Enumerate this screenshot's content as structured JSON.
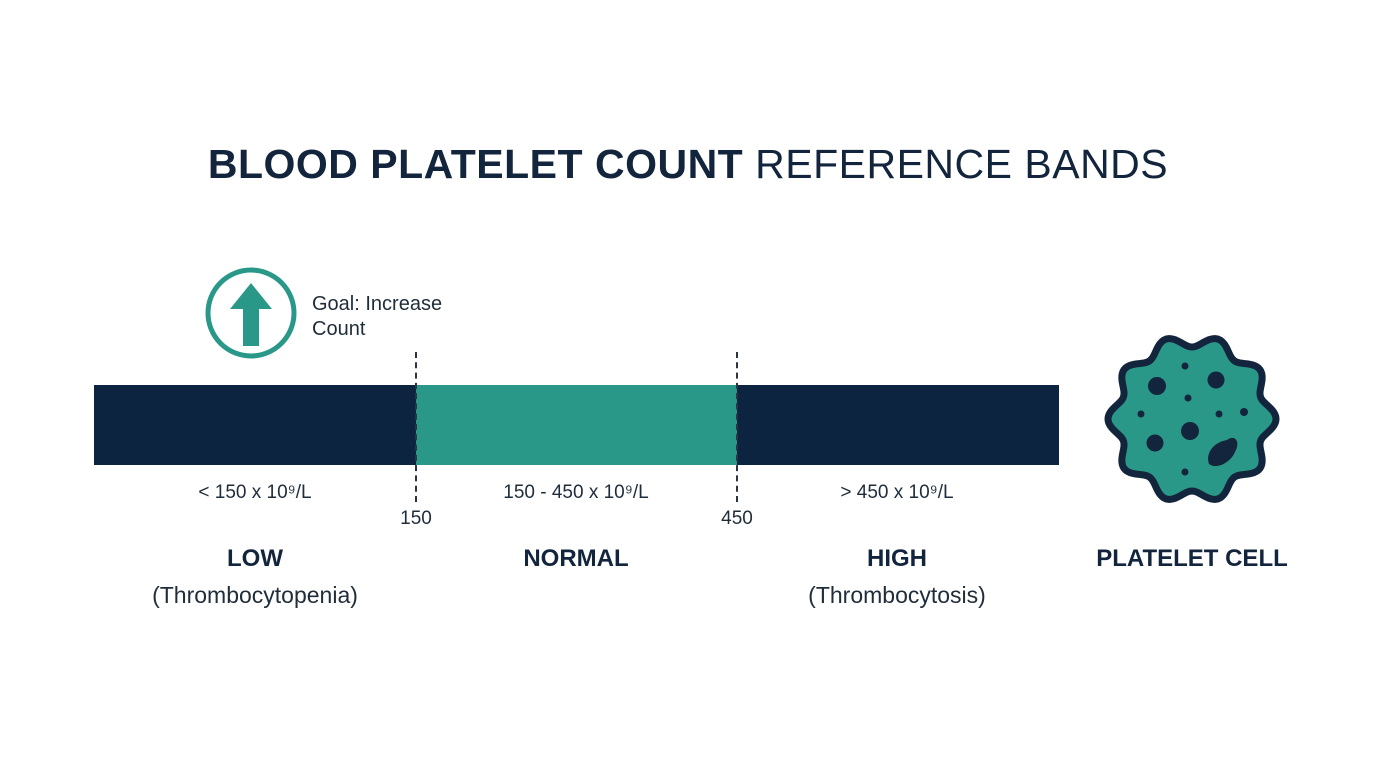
{
  "title": {
    "bold_part": "BLOOD PLATELET COUNT",
    "light_part": "REFERENCE BANDS"
  },
  "goal": {
    "icon": "arrow-up-circle-icon",
    "line1": "Goal: Increase",
    "line2": "Count"
  },
  "colors": {
    "dark": "#0d2440",
    "teal": "#2a9888",
    "text": "#13253d"
  },
  "bands": [
    {
      "key": "low",
      "range": "< 150 x 10⁹/L",
      "label": "LOW",
      "sub": "(Thrombocytopenia)"
    },
    {
      "key": "normal",
      "range": "150 - 450 x 10⁹/L",
      "label": "NORMAL",
      "sub": ""
    },
    {
      "key": "high",
      "range": "> 450 x 10⁹/L",
      "label": "HIGH",
      "sub": "(Thrombocytosis)"
    }
  ],
  "thresholds": [
    "150",
    "450"
  ],
  "cell": {
    "icon": "platelet-cell-icon",
    "label": "PLATELET CELL"
  }
}
